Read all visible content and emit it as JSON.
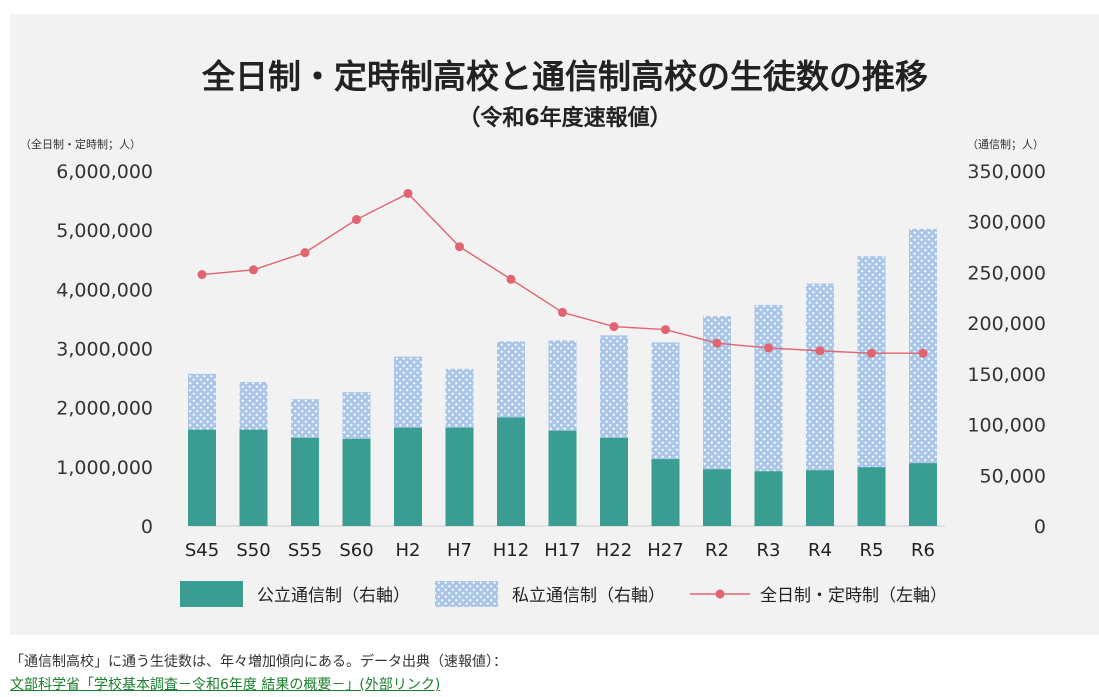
{
  "chart_data": {
    "type": "bar",
    "title": "全日制・定時制高校と通信制高校の生徒数の推移",
    "subtitle": "（令和6年度速報値）",
    "y_left_unit": "（全日制・定時制；人）",
    "y_right_unit": "（通信制；人）",
    "y_left_ticks": [
      "0",
      "1,000,000",
      "2,000,000",
      "3,000,000",
      "4,000,000",
      "5,000,000",
      "6,000,000"
    ],
    "y_right_ticks": [
      "0",
      "50,000",
      "100,000",
      "150,000",
      "200,000",
      "250,000",
      "300,000",
      "350,000"
    ],
    "ylim_left": [
      0,
      6000000
    ],
    "ylim_right": [
      0,
      350000
    ],
    "categories": [
      "S45",
      "S50",
      "S55",
      "S60",
      "H2",
      "H7",
      "H12",
      "H17",
      "H22",
      "H27",
      "R2",
      "R3",
      "R4",
      "R5",
      "R6"
    ],
    "series": [
      {
        "name": "公立通信制（右軸）",
        "type": "bar",
        "stacked": true,
        "axis": "right",
        "color": "#3a9d92",
        "values": [
          95000,
          95000,
          87000,
          86000,
          97000,
          97000,
          107000,
          94000,
          87000,
          66000,
          56000,
          54000,
          55000,
          58000,
          62000
        ]
      },
      {
        "name": "私立通信制（右軸）",
        "type": "bar",
        "stacked": true,
        "axis": "right",
        "color": "#a9c6e8",
        "values": [
          55000,
          47000,
          38000,
          46000,
          70000,
          58000,
          75000,
          89000,
          101000,
          115000,
          151000,
          164000,
          184000,
          208000,
          231000
        ]
      },
      {
        "name": "全日制・定時制（左軸）",
        "type": "line",
        "axis": "left",
        "color": "#e26470",
        "values": [
          4250000,
          4330000,
          4620000,
          5180000,
          5620000,
          4720000,
          4170000,
          3610000,
          3370000,
          3320000,
          3090000,
          3010000,
          2960000,
          2920000,
          2920000
        ]
      }
    ],
    "legend_position": "bottom",
    "grid": false
  },
  "caption": "「通信制高校」に通う生徒数は、年々増加傾向にある。データ出典（速報値）：",
  "source_link": "文部科学省「学校基本調査－令和6年度 結果の概要－」(外部リンク)"
}
